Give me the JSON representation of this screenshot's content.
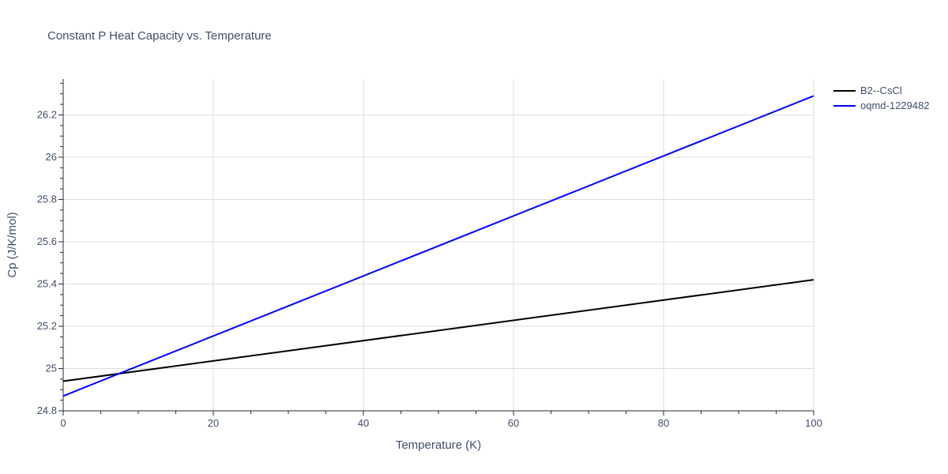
{
  "chart_data": {
    "type": "line",
    "title": "Constant P Heat Capacity vs. Temperature",
    "xlabel": "Temperature (K)",
    "ylabel": "Cp (J/K/mol)",
    "xlim": [
      0,
      100
    ],
    "ylim": [
      24.8,
      26.37
    ],
    "x_ticks": [
      0,
      20,
      40,
      60,
      80,
      100
    ],
    "x_tick_labels": [
      "0",
      "20",
      "40",
      "60",
      "80",
      "100"
    ],
    "y_ticks": [
      24.8,
      25,
      25.2,
      25.4,
      25.6,
      25.8,
      26,
      26.2
    ],
    "y_tick_labels": [
      "24.8",
      "25",
      "25.2",
      "25.4",
      "25.6",
      "25.8",
      "26",
      "26.2"
    ],
    "grid": true,
    "legend_position": "top-right",
    "series": [
      {
        "name": "B2--CsCl",
        "color": "#000000",
        "x": [
          0,
          100
        ],
        "y": [
          24.94,
          25.42
        ]
      },
      {
        "name": "oqmd-1229482",
        "color": "#0000ff",
        "x": [
          0,
          100
        ],
        "y": [
          24.87,
          26.29
        ]
      }
    ]
  }
}
